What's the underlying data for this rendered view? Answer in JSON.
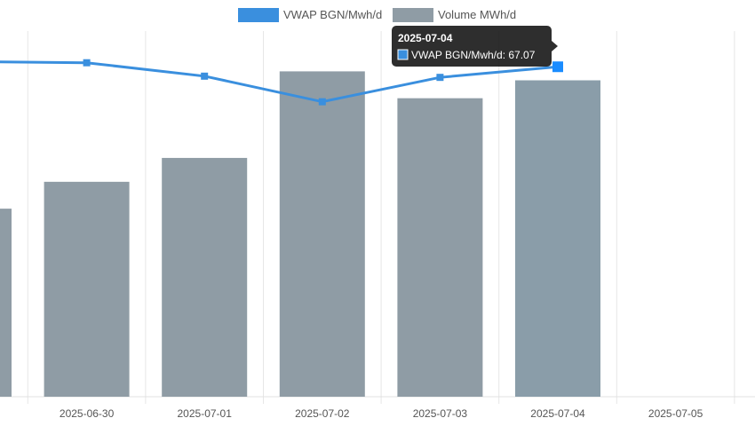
{
  "chart_data": {
    "type": "bar",
    "categories": [
      "",
      "2025-06-30",
      "2025-07-01",
      "2025-07-02",
      "2025-07-03",
      "2025-07-04",
      "2025-07-05"
    ],
    "series": [
      {
        "name": "VWAP BGN/Mwh/d",
        "type": "line",
        "color": "#3a8fde",
        "values": [
          67.5,
          67.4,
          66.3,
          64.2,
          66.2,
          67.07,
          null
        ]
      },
      {
        "name": "Volume MWh/d",
        "type": "bar",
        "color": "#8f9ca5",
        "values": [
          1260,
          1440,
          1600,
          2180,
          2000,
          2120,
          null
        ]
      }
    ],
    "legend_position": "top-center",
    "grid": true,
    "tooltip": {
      "title": "2025-07-04",
      "label": "VWAP BGN/Mwh/d: 67.07"
    }
  }
}
